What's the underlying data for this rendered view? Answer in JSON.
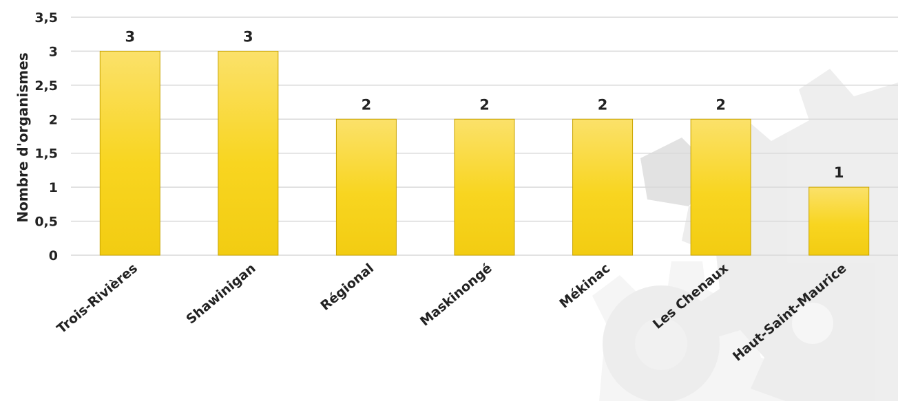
{
  "chart_data": {
    "type": "bar",
    "categories": [
      "Trois-Rivières",
      "Shawinigan",
      "Régional",
      "Maskinongé",
      "Mékinac",
      "Les Chenaux",
      "Haut-Saint-Maurice"
    ],
    "values": [
      3,
      3,
      2,
      2,
      2,
      2,
      1
    ],
    "data_labels": [
      "3",
      "3",
      "2",
      "2",
      "2",
      "2",
      "1"
    ],
    "title": "",
    "xlabel": "",
    "ylabel": "Nombre d'organismes",
    "ylim": [
      0,
      3.5
    ],
    "yticks": [
      0,
      0.5,
      1,
      1.5,
      2,
      2.5,
      3,
      3.5
    ],
    "ytick_labels": [
      "0",
      "0,5",
      "1",
      "1,5",
      "2",
      "2,5",
      "3",
      "3,5"
    ],
    "grid": true,
    "legend": "none",
    "bar_color": "#f7d41e",
    "bar_color_light": "#fbe36a",
    "decorative_background": "gear-watermark-icon"
  }
}
